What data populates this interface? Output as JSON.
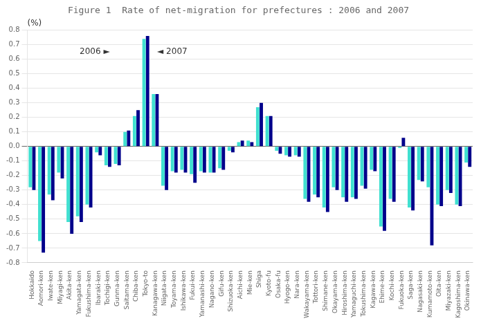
{
  "chart_data": {
    "type": "bar",
    "title": "Figure 1  Rate of net-migration for prefectures : 2006 and 2007",
    "ylabel": "(%)",
    "categories": [
      "Hokkaido",
      "Aomori-ken",
      "Iwate-ken",
      "Miyagi-ken",
      "Akita-ken",
      "Yamagata-ken",
      "Fukushima-ken",
      "Ibaraki-ken",
      "Tochigi-ken",
      "Gunma-ken",
      "Saitama-ken",
      "Chiba-ken",
      "Tokyo-to",
      "Kanagawa-ken",
      "Niigata-ken",
      "Toyama-ken",
      "Ishikawa-ken",
      "Fukui-ken",
      "Yamanashi-ken",
      "Nagano-ken",
      "Gifu-ken",
      "Shizuoka-ken",
      "Aichi-ken",
      "Mie-ken",
      "Shiga",
      "Kyoto-fu",
      "Osaka-fu",
      "Hyogo-ken",
      "Nara-ken",
      "Wakayama-ken",
      "Tottori-ken",
      "Shimane-ken",
      "Okayama-ken",
      "Hiroshima-ken",
      "Yamaguchi-ken",
      "Tokushima-ken",
      "Kagawa-ken",
      "Ehime-ken",
      "Kochi-ken",
      "Fukuoka-ken",
      "Saga-ken",
      "Nagasaki-ken",
      "Kumamoto-ken",
      "Oita-ken",
      "Miyazaki-ken",
      "Kagoshima-ken",
      "Okinawa-ken"
    ],
    "series": [
      {
        "color": "#40E0D0",
        "values": [
          -0.28,
          -0.65,
          -0.33,
          -0.18,
          -0.52,
          -0.48,
          -0.4,
          -0.04,
          -0.13,
          -0.12,
          0.1,
          0.21,
          0.74,
          0.36,
          -0.27,
          -0.17,
          -0.16,
          -0.19,
          -0.17,
          -0.18,
          -0.15,
          -0.03,
          0.03,
          0.04,
          0.27,
          0.21,
          -0.03,
          -0.06,
          -0.06,
          -0.36,
          -0.33,
          -0.42,
          -0.28,
          -0.35,
          -0.35,
          -0.27,
          -0.16,
          -0.55,
          -0.36,
          -0.01,
          -0.42,
          -0.23,
          -0.28,
          -0.4,
          -0.3,
          -0.4,
          -0.11
        ]
      },
      {
        "color": "#00008B",
        "values": [
          -0.3,
          -0.73,
          -0.37,
          -0.22,
          -0.6,
          -0.52,
          -0.42,
          -0.06,
          -0.14,
          -0.13,
          0.11,
          0.25,
          0.76,
          0.36,
          -0.3,
          -0.18,
          -0.18,
          -0.25,
          -0.18,
          -0.18,
          -0.16,
          -0.04,
          0.04,
          0.03,
          0.3,
          0.21,
          -0.05,
          -0.07,
          -0.07,
          -0.38,
          -0.35,
          -0.45,
          -0.3,
          -0.38,
          -0.36,
          -0.29,
          -0.17,
          -0.58,
          -0.38,
          0.06,
          -0.44,
          -0.24,
          -0.68,
          -0.41,
          -0.32,
          -0.41,
          -0.14
        ]
      }
    ],
    "ylim": [
      -0.8,
      0.8
    ],
    "yticks": [
      -0.8,
      -0.7,
      -0.6,
      -0.5,
      -0.4,
      -0.3,
      -0.2,
      -0.1,
      {
        "value": 0.0,
        "label": "0.0"
      },
      0.1,
      0.2,
      0.3,
      0.4,
      0.5,
      0.6,
      0.7,
      0.8
    ],
    "grid": true,
    "annotations": [
      {
        "text": "2006 ►",
        "x": 8.2,
        "y": 0.65
      },
      {
        "text": "◄ 2007",
        "x": 13.2,
        "y": 0.65
      }
    ]
  }
}
